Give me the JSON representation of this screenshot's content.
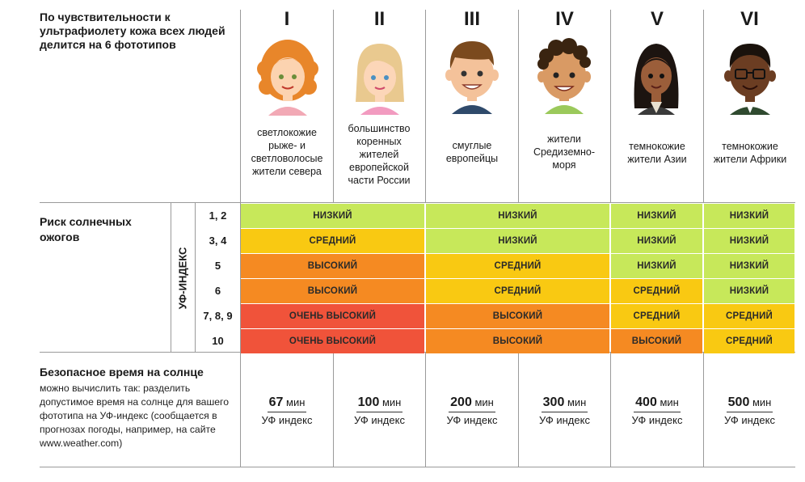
{
  "intro": "По чувствительности к ультрафиолету кожа всех людей делится на 6 фототипов",
  "phototypes": [
    {
      "roman": "I",
      "desc": "светлокожие рыже- и светловолосые жители севера",
      "time": "67",
      "unit": "мин",
      "den": "УФ индекс"
    },
    {
      "roman": "II",
      "desc": "большинство коренных жителей европейской части России",
      "time": "100",
      "unit": "мин",
      "den": "УФ индекс"
    },
    {
      "roman": "III",
      "desc": "смуглые европейцы",
      "time": "200",
      "unit": "мин",
      "den": "УФ индекс"
    },
    {
      "roman": "IV",
      "desc": "жители Средиземно-моря",
      "time": "300",
      "unit": "мин",
      "den": "УФ индекс"
    },
    {
      "roman": "V",
      "desc": "темнокожие жители Азии",
      "time": "400",
      "unit": "мин",
      "den": "УФ индекс"
    },
    {
      "roman": "VI",
      "desc": "темнокожие жители Африки",
      "time": "500",
      "unit": "мин",
      "den": "УФ индекс"
    }
  ],
  "risk": {
    "title": "Риск солнечных ожогов",
    "uv_label": "УФ-ИНДЕКС",
    "rows": [
      {
        "uv": "1, 2",
        "cells": [
          "НИЗКИЙ",
          "НИЗКИЙ",
          "НИЗКИЙ",
          "НИЗКИЙ"
        ]
      },
      {
        "uv": "3, 4",
        "cells": [
          "СРЕДНИЙ",
          "НИЗКИЙ",
          "НИЗКИЙ",
          "НИЗКИЙ"
        ]
      },
      {
        "uv": "5",
        "cells": [
          "ВЫСОКИЙ",
          "СРЕДНИЙ",
          "НИЗКИЙ",
          "НИЗКИЙ"
        ]
      },
      {
        "uv": "6",
        "cells": [
          "ВЫСОКИЙ",
          "СРЕДНИЙ",
          "СРЕДНИЙ",
          "НИЗКИЙ"
        ]
      },
      {
        "uv": "7, 8, 9",
        "cells": [
          "ОЧЕНЬ ВЫСОКИЙ",
          "ВЫСОКИЙ",
          "СРЕДНИЙ",
          "СРЕДНИЙ"
        ]
      },
      {
        "uv": "10",
        "cells": [
          "ОЧЕНЬ ВЫСОКИЙ",
          "ВЫСОКИЙ",
          "ВЫСОКИЙ",
          "СРЕДНИЙ"
        ]
      }
    ],
    "colors": {
      "НИЗКИЙ": "#c7e85a",
      "СРЕДНИЙ": "#f9c912",
      "ВЫСОКИЙ": "#f58a22",
      "ОЧЕНЬ ВЫСОКИЙ": "#f0533a"
    }
  },
  "safe": {
    "title": "Безопасное время на солнце",
    "desc": "можно вычислить так: разделить допустимое время на солнце для вашего фототипа на УФ-индекс (сообщается в прогнозах погоды, например, на сайте www.weather.com)"
  },
  "avatars": [
    {
      "icon": "red-haired-woman-icon",
      "hair": "#e8862a",
      "skin": "#fcd3b0",
      "shirt": "#f2a9b5"
    },
    {
      "icon": "blonde-woman-icon",
      "hair": "#e9c98f",
      "skin": "#fcd6b8",
      "shirt": "#f29bc0"
    },
    {
      "icon": "brown-haired-man-icon",
      "hair": "#7b4a1e",
      "skin": "#f4c29a",
      "shirt": "#2f4a6b"
    },
    {
      "icon": "curly-dark-man-icon",
      "hair": "#3a2410",
      "skin": "#d99a64",
      "shirt": "#9bc95b"
    },
    {
      "icon": "dark-haired-woman-icon",
      "hair": "#1c1410",
      "skin": "#9b5e3a",
      "shirt": "#3a3a3a"
    },
    {
      "icon": "man-with-glasses-icon",
      "hair": "#1a120c",
      "skin": "#6b3d22",
      "shirt": "#2f4a2f"
    }
  ]
}
